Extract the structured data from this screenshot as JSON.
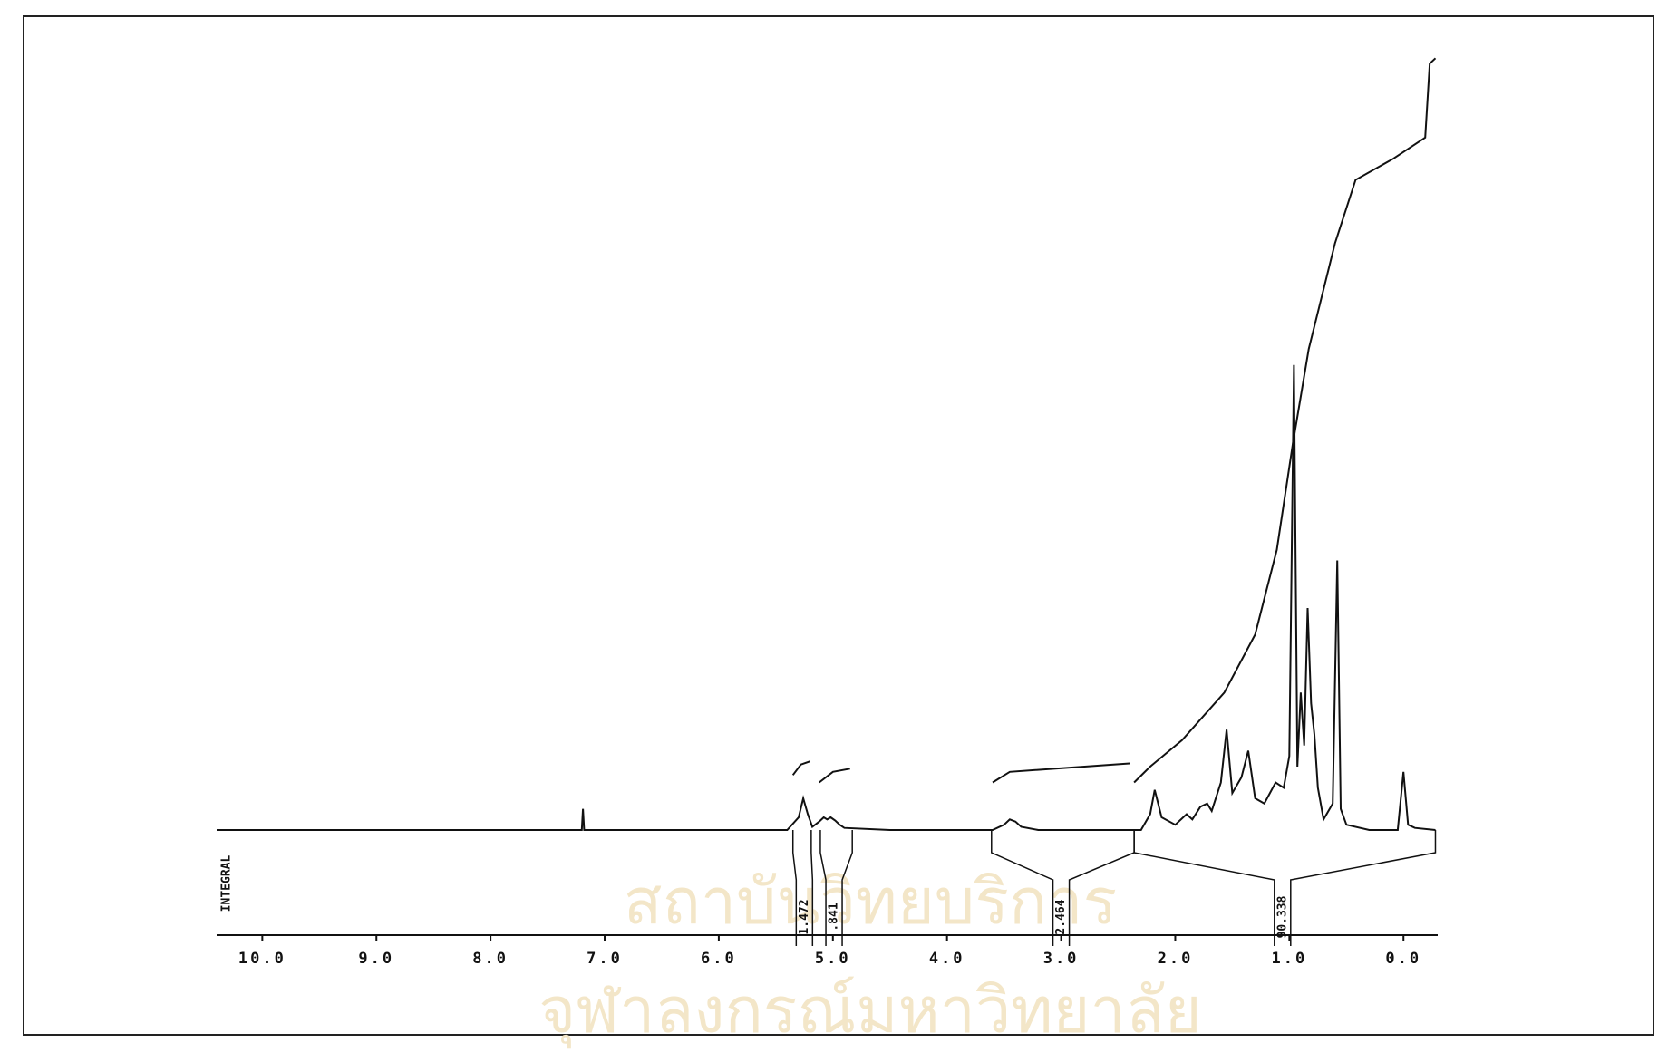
{
  "chart_data": {
    "type": "line",
    "watermark": [
      "สถาบันวิทยบริการ",
      "จุฬาลงกรณ์มหาวิทยาลัย"
    ],
    "axis_label": "INTEGRAL",
    "xlim": [
      10.4,
      -0.3
    ],
    "ylim": [
      0,
      780
    ],
    "xticks": [
      {
        "value": 10,
        "label": "10.0"
      },
      {
        "value": 9,
        "label": "9.0"
      },
      {
        "value": 8,
        "label": "8.0"
      },
      {
        "value": 7,
        "label": "7.0"
      },
      {
        "value": 6,
        "label": "6.0"
      },
      {
        "value": 5,
        "label": "5.0"
      },
      {
        "value": 4,
        "label": "4.0"
      },
      {
        "value": 3,
        "label": "3.0"
      },
      {
        "value": 2,
        "label": "2.0"
      },
      {
        "value": 1,
        "label": "1.0"
      },
      {
        "value": 0,
        "label": "0.0"
      }
    ],
    "series": [
      {
        "color": "#111111",
        "x": [
          10.4,
          7.2,
          7.19,
          7.18,
          5.4,
          5.3,
          5.26,
          5.22,
          5.18,
          5.12,
          5.08,
          5.05,
          5.02,
          4.98,
          4.94,
          4.9,
          4.5,
          3.6,
          3.5,
          3.45,
          3.4,
          3.35,
          3.2,
          2.3,
          2.22,
          2.18,
          2.12,
          2.0,
          1.9,
          1.85,
          1.78,
          1.72,
          1.68,
          1.6,
          1.55,
          1.5,
          1.42,
          1.36,
          1.3,
          1.22,
          1.12,
          1.05,
          1.0,
          0.96,
          0.93,
          0.9,
          0.87,
          0.84,
          0.81,
          0.78,
          0.75,
          0.7,
          0.62,
          0.58,
          0.55,
          0.5,
          0.3,
          0.05,
          0.0,
          -0.04,
          -0.1,
          -0.28
        ],
        "values": [
          0,
          0,
          20,
          0,
          0,
          12,
          30,
          15,
          3,
          8,
          12,
          10,
          12,
          9,
          5,
          2,
          0,
          0,
          5,
          10,
          8,
          3,
          0,
          0,
          15,
          38,
          12,
          5,
          15,
          10,
          22,
          25,
          18,
          45,
          95,
          35,
          50,
          75,
          30,
          25,
          45,
          40,
          70,
          440,
          60,
          130,
          80,
          210,
          120,
          90,
          40,
          10,
          25,
          255,
          20,
          5,
          0,
          0,
          55,
          5,
          2,
          0
        ]
      },
      {
        "color": "#111111",
        "x": [
          5.35,
          5.28,
          5.2,
          null,
          5.12,
          5.0,
          4.85,
          null,
          3.6,
          3.45,
          2.4,
          null,
          2.36,
          2.22,
          1.94,
          1.57,
          1.3,
          1.11,
          0.97,
          0.83,
          0.6,
          0.42,
          0.09,
          -0.19,
          -0.23,
          -0.28
        ],
        "values": [
          52,
          62,
          65,
          null,
          45,
          55,
          58,
          null,
          45,
          55,
          63,
          null,
          45,
          60,
          85,
          130,
          185,
          265,
          365,
          455,
          555,
          615,
          635,
          655,
          725,
          730
        ]
      }
    ],
    "integrals": [
      {
        "from": 5.35,
        "to": 5.19,
        "at": 5.25,
        "label": "1.472"
      },
      {
        "from": 5.11,
        "to": 4.83,
        "at": 4.99,
        "label": ".841"
      },
      {
        "from": 3.61,
        "to": 2.36,
        "at": 3.0,
        "label": "2.464"
      },
      {
        "from": 2.36,
        "to": -0.28,
        "at": 1.06,
        "label": "90.338"
      }
    ]
  }
}
